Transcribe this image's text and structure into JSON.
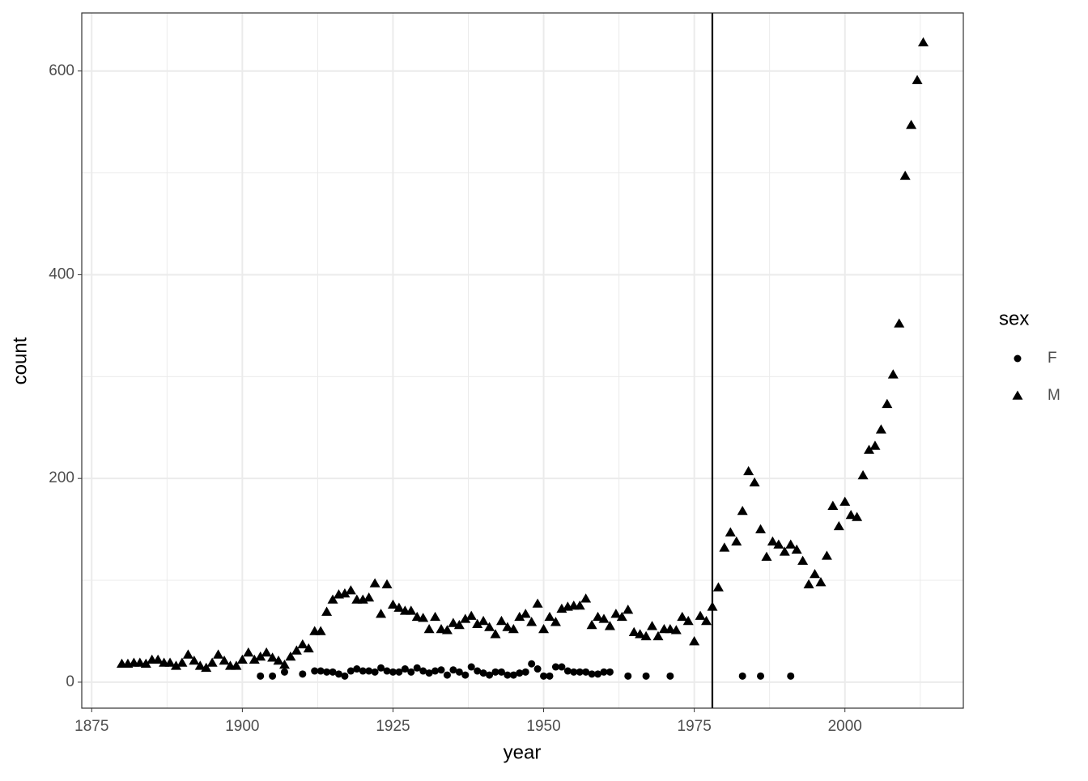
{
  "chart_data": {
    "type": "scatter",
    "x_label": "year",
    "y_label": "count",
    "legend_title": "sex",
    "legend_position": "right",
    "xlim": [
      1873.35,
      2019.65
    ],
    "ylim": [
      -25.5,
      657
    ],
    "xticks": [
      1875,
      1900,
      1925,
      1950,
      1975,
      2000
    ],
    "yticks": [
      0,
      200,
      400,
      600
    ],
    "x_minor_ticks": [
      1887.5,
      1912.5,
      1937.5,
      1962.5,
      1987.5,
      2012.5
    ],
    "y_minor_ticks": [
      100,
      300,
      500
    ],
    "grid": true,
    "vline": 1978,
    "series": [
      {
        "name": "F",
        "color": "#000000",
        "shape": "circle",
        "x": [
          1903,
          1905,
          1907,
          1910,
          1912,
          1913,
          1914,
          1915,
          1916,
          1917,
          1918,
          1919,
          1920,
          1921,
          1922,
          1923,
          1924,
          1925,
          1926,
          1927,
          1928,
          1929,
          1930,
          1931,
          1932,
          1933,
          1934,
          1935,
          1936,
          1937,
          1938,
          1939,
          1940,
          1941,
          1942,
          1943,
          1944,
          1945,
          1946,
          1947,
          1948,
          1949,
          1950,
          1951,
          1952,
          1953,
          1954,
          1955,
          1956,
          1957,
          1958,
          1959,
          1960,
          1961,
          1964,
          1967,
          1971,
          1983,
          1986,
          1991
        ],
        "values": [
          6,
          6,
          10,
          8,
          11,
          11,
          10,
          10,
          8,
          6,
          11,
          13,
          11,
          11,
          10,
          14,
          11,
          10,
          10,
          13,
          10,
          14,
          11,
          9,
          11,
          12,
          7,
          12,
          10,
          7,
          15,
          11,
          9,
          7,
          10,
          10,
          7,
          7,
          9,
          10,
          18,
          13,
          6,
          6,
          15,
          15,
          11,
          10,
          10,
          10,
          8,
          8,
          10,
          10,
          6,
          6,
          6,
          6,
          6,
          6
        ]
      },
      {
        "name": "M",
        "color": "#000000",
        "shape": "triangle",
        "x": [
          1880,
          1881,
          1882,
          1883,
          1884,
          1885,
          1886,
          1887,
          1888,
          1889,
          1890,
          1891,
          1892,
          1893,
          1894,
          1895,
          1896,
          1897,
          1898,
          1899,
          1900,
          1901,
          1902,
          1903,
          1904,
          1905,
          1906,
          1907,
          1908,
          1909,
          1910,
          1911,
          1912,
          1913,
          1914,
          1915,
          1916,
          1917,
          1918,
          1919,
          1920,
          1921,
          1922,
          1923,
          1924,
          1925,
          1926,
          1927,
          1928,
          1929,
          1930,
          1931,
          1932,
          1933,
          1934,
          1935,
          1936,
          1937,
          1938,
          1939,
          1940,
          1941,
          1942,
          1943,
          1944,
          1945,
          1946,
          1947,
          1948,
          1949,
          1950,
          1951,
          1952,
          1953,
          1954,
          1955,
          1956,
          1957,
          1958,
          1959,
          1960,
          1961,
          1962,
          1963,
          1964,
          1965,
          1966,
          1967,
          1968,
          1969,
          1970,
          1971,
          1972,
          1973,
          1974,
          1975,
          1976,
          1977,
          1978,
          1979,
          1980,
          1981,
          1982,
          1983,
          1984,
          1985,
          1986,
          1987,
          1988,
          1989,
          1990,
          1991,
          1992,
          1993,
          1994,
          1995,
          1996,
          1997,
          1998,
          1999,
          2000,
          2001,
          2002,
          2003,
          2004,
          2005,
          2006,
          2007,
          2008,
          2009,
          2010,
          2011,
          2012,
          2013
        ],
        "values": [
          18,
          18,
          19,
          19,
          18,
          22,
          22,
          19,
          19,
          16,
          19,
          27,
          21,
          16,
          14,
          19,
          27,
          21,
          16,
          16,
          22,
          29,
          22,
          25,
          29,
          24,
          21,
          17,
          25,
          31,
          37,
          33,
          50,
          50,
          69,
          81,
          86,
          87,
          90,
          81,
          81,
          83,
          97,
          67,
          96,
          76,
          73,
          70,
          70,
          64,
          63,
          52,
          64,
          52,
          51,
          58,
          56,
          62,
          65,
          57,
          60,
          54,
          47,
          60,
          54,
          52,
          64,
          67,
          59,
          77,
          52,
          64,
          59,
          72,
          74,
          75,
          75,
          82,
          56,
          64,
          62,
          55,
          67,
          64,
          71,
          49,
          47,
          45,
          55,
          45,
          52,
          52,
          51,
          64,
          60,
          40,
          65,
          60,
          74,
          93,
          132,
          147,
          138,
          168,
          207,
          196,
          150,
          123,
          138,
          135,
          128,
          135,
          130,
          119,
          96,
          106,
          98,
          124,
          173,
          153,
          177,
          164,
          162,
          203,
          228,
          232,
          248,
          273,
          302,
          352,
          497,
          547,
          591,
          628
        ]
      }
    ]
  }
}
